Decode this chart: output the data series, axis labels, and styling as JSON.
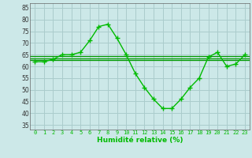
{
  "title": "",
  "xlabel": "Humidité relative (%)",
  "ylabel": "",
  "bg_color": "#cce8e8",
  "grid_color": "#aacccc",
  "line_color": "#00bb00",
  "mean_line_color": "#009900",
  "xlim": [
    -0.5,
    23.5
  ],
  "ylim": [
    33,
    87
  ],
  "yticks": [
    35,
    40,
    45,
    50,
    55,
    60,
    65,
    70,
    75,
    80,
    85
  ],
  "xticks": [
    0,
    1,
    2,
    3,
    4,
    5,
    6,
    7,
    8,
    9,
    10,
    11,
    12,
    13,
    14,
    15,
    16,
    17,
    18,
    19,
    20,
    21,
    22,
    23
  ],
  "main_series": [
    62,
    62,
    63,
    65,
    65,
    66,
    71,
    77,
    78,
    72,
    65,
    57,
    51,
    46,
    42,
    42,
    46,
    51,
    55,
    64,
    66,
    60,
    61,
    65
  ],
  "mean_value": 63.5,
  "mean2_value": 64.5,
  "mean3_value": 62.8
}
